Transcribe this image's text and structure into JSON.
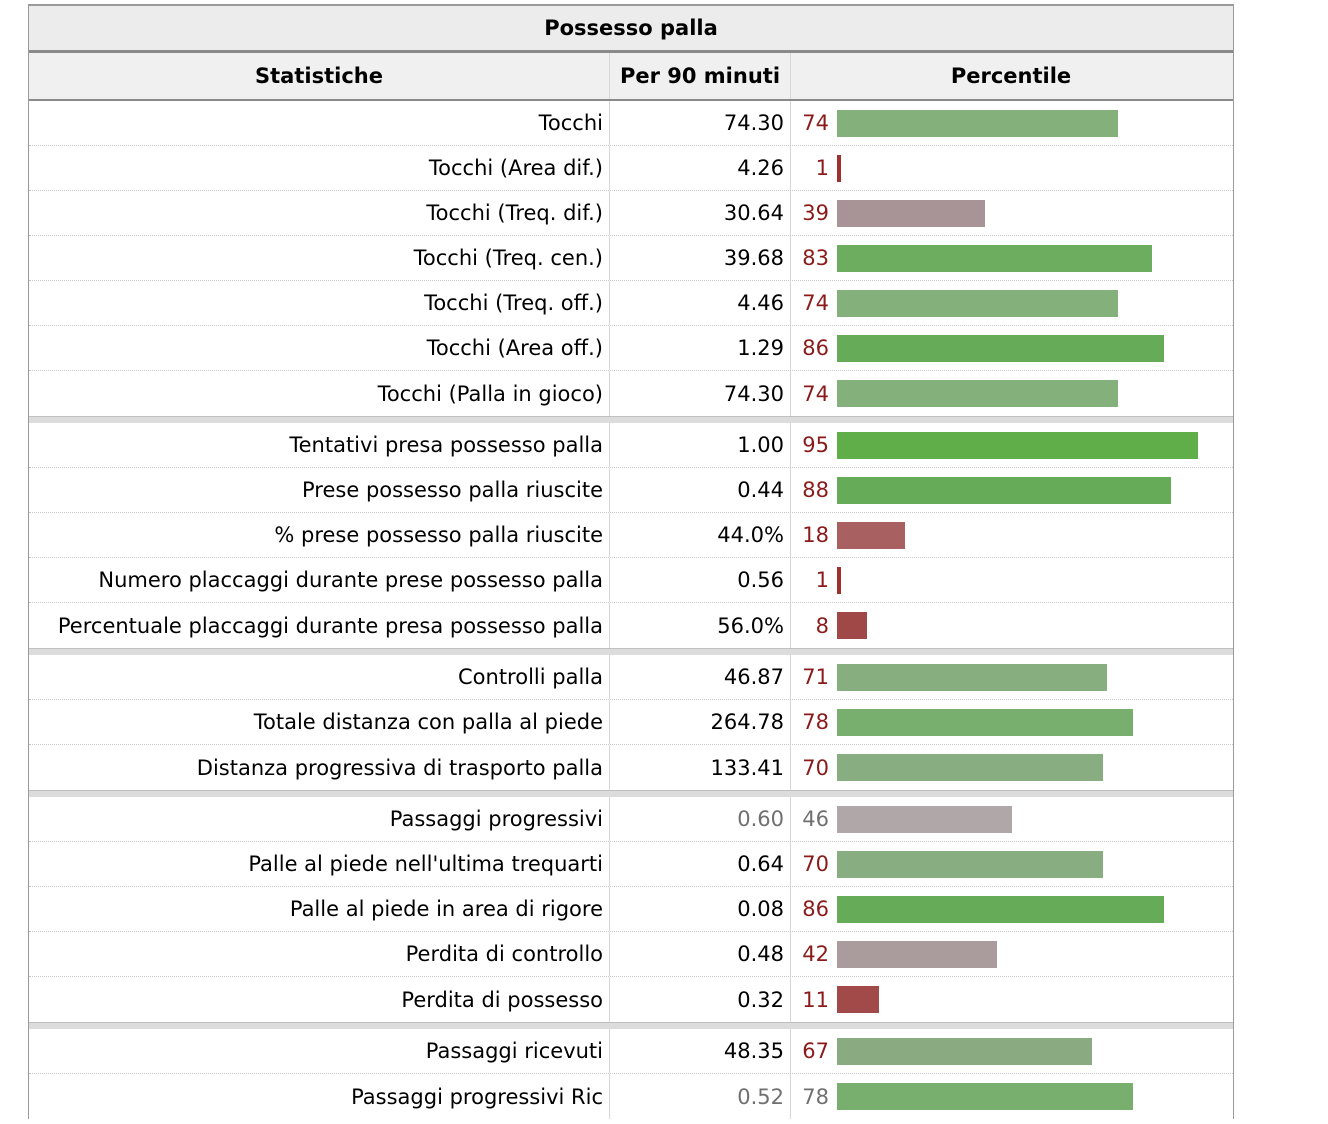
{
  "table": {
    "caption": "Possesso palla",
    "headers": [
      "Statistiche",
      "Per 90 minuti",
      "Percentile"
    ],
    "groups": [
      [
        {
          "stat": "Tocchi",
          "value": "74.30",
          "percentile": "74",
          "bar_color": "#84b07c"
        },
        {
          "stat": "Tocchi (Area dif.)",
          "value": "4.26",
          "percentile": "1",
          "bar_color": "#a03030"
        },
        {
          "stat": "Tocchi (Treq. dif.)",
          "value": "30.64",
          "percentile": "39",
          "bar_color": "#a89496"
        },
        {
          "stat": "Tocchi (Treq. cen.)",
          "value": "39.68",
          "percentile": "83",
          "bar_color": "#6cad60"
        },
        {
          "stat": "Tocchi (Treq. off.)",
          "value": "4.46",
          "percentile": "74",
          "bar_color": "#84b07c"
        },
        {
          "stat": "Tocchi (Area off.)",
          "value": "1.29",
          "percentile": "86",
          "bar_color": "#65ab58"
        },
        {
          "stat": "Tocchi (Palla in gioco)",
          "value": "74.30",
          "percentile": "74",
          "bar_color": "#84b07c"
        }
      ],
      [
        {
          "stat": "Tentativi presa possesso palla",
          "value": "1.00",
          "percentile": "95",
          "bar_color": "#5fae4a"
        },
        {
          "stat": "Prese possesso palla riuscite",
          "value": "0.44",
          "percentile": "88",
          "bar_color": "#65ab58"
        },
        {
          "stat": "% prese possesso palla riuscite",
          "value": "44.0%",
          "percentile": "18",
          "bar_color": "#a86060"
        },
        {
          "stat": "Numero placcaggi durante prese possesso palla",
          "value": "0.56",
          "percentile": "1",
          "bar_color": "#a03030"
        },
        {
          "stat": "Percentuale placcaggi durante presa possesso palla",
          "value": "56.0%",
          "percentile": "8",
          "bar_color": "#a04848"
        }
      ],
      [
        {
          "stat": "Controlli palla",
          "value": "46.87",
          "percentile": "71",
          "bar_color": "#86ae7e"
        },
        {
          "stat": "Totale distanza con palla al piede",
          "value": "264.78",
          "percentile": "78",
          "bar_color": "#78ae6e"
        },
        {
          "stat": "Distanza progressiva di trasporto palla",
          "value": "133.41",
          "percentile": "70",
          "bar_color": "#87ad80"
        }
      ],
      [
        {
          "stat": "Passaggi progressivi",
          "value": "0.60",
          "percentile": "46",
          "bar_color": "#b0a8a8",
          "muted": true
        },
        {
          "stat": "Palle al piede nell'ultima trequarti",
          "value": "0.64",
          "percentile": "70",
          "bar_color": "#87ad80"
        },
        {
          "stat": "Palle al piede in area di rigore",
          "value": "0.08",
          "percentile": "86",
          "bar_color": "#65ab58"
        },
        {
          "stat": "Perdita di controllo",
          "value": "0.48",
          "percentile": "42",
          "bar_color": "#aa9c9c"
        },
        {
          "stat": "Perdita di possesso",
          "value": "0.32",
          "percentile": "11",
          "bar_color": "#a24a4a"
        }
      ],
      [
        {
          "stat": "Passaggi ricevuti",
          "value": "48.35",
          "percentile": "67",
          "bar_color": "#8aab82"
        },
        {
          "stat": "Passaggi progressivi Ric",
          "value": "0.52",
          "percentile": "78",
          "bar_color": "#78ae6e",
          "muted": true
        }
      ]
    ]
  },
  "colors": {
    "percentile_text": "#8b1a1a",
    "muted_text": "#707070"
  }
}
